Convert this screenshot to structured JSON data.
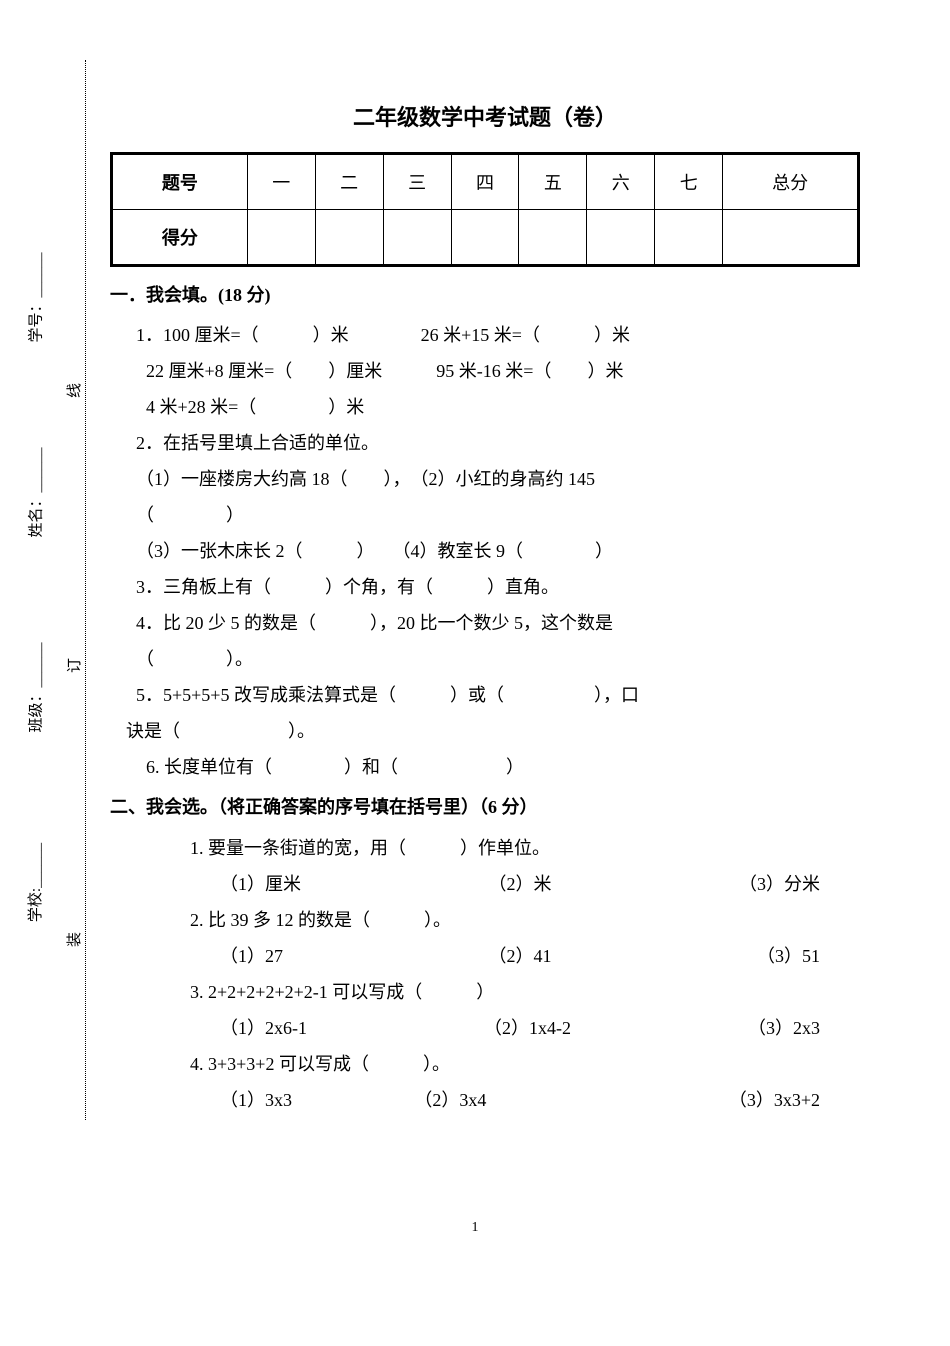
{
  "title": "二年级数学中考试题（卷）",
  "side": {
    "school": "学校:",
    "class": "班级：",
    "name": "姓名：",
    "number": "学号：",
    "blank": "______"
  },
  "binding": {
    "c1": "装",
    "c2": "订",
    "c3": "线"
  },
  "scoreTable": {
    "headers": [
      "题号",
      "一",
      "二",
      "三",
      "四",
      "五",
      "六",
      "七",
      "总分"
    ],
    "rowLabel": "得分"
  },
  "section1": {
    "heading": "一．我会填。(18 分)",
    "q1a": "1．100 厘米=（　　　）米　　　　26 米+15 米=（　　　）米",
    "q1b": "22 厘米+8 厘米=（　　）厘米　　　95 米-16 米=（　　）米",
    "q1c": "4 米+28 米=（　　　　）米",
    "q2": "2．在括号里填上合适的单位。",
    "q2_1": "（1）一座楼房大约高 18（　　），　（2）小红的身高约 145",
    "q2_1b": "（　　　　）",
    "q2_3": "（3）一张木床长 2（　　　）　　（4）教室长 9（　　　　）",
    "q3": "3．三角板上有（　　　）个角，有（　　　）直角。",
    "q4": "4．比 20 少 5 的数是（　　　），20 比一个数少 5，这个数是",
    "q4b": "（　　　　）。",
    "q5": "5．5+5+5+5 改写成乘法算式是（　　　）或（　　　　　），口",
    "q5b": "诀是（　　　　　　）。",
    "q6": "6. 长度单位有（　　　　）和（　　　　　　）"
  },
  "section2": {
    "heading": "二、我会选。（将正确答案的序号填在括号里）（6 分）",
    "q1": "1. 要量一条街道的宽，用（　　　）作单位。",
    "q1o1": "（1）厘米",
    "q1o2": "（2）米",
    "q1o3": "（3）分米",
    "q2": "2. 比 39 多 12 的数是（　　　）。",
    "q2o1": "（1）27",
    "q2o2": "（2）41",
    "q2o3": "（3）51",
    "q3": "3. 2+2+2+2+2+2-1 可以写成（　　　）",
    "q3o1": "（1）2x6-1",
    "q3o2": "（2）1x4-2",
    "q3o3": "（3）2x3",
    "q4": "4. 3+3+3+2 可以写成（　　　）。",
    "q4o1": "（1）3x3",
    "q4o2": "（2）3x4",
    "q4o3": "（3）3x3+2"
  },
  "pageNumber": "1"
}
